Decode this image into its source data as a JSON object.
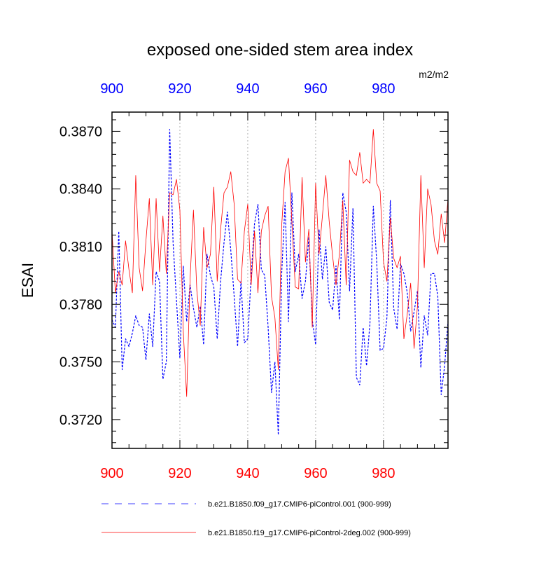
{
  "chart_data": {
    "type": "line",
    "title": "exposed one-sided stem area index",
    "units": "m2/m2",
    "ylabel": "ESAI",
    "xlabel": "",
    "xlim": [
      900,
      999
    ],
    "ylim": [
      0.3705,
      0.388
    ],
    "xticks_bottom": [
      900,
      920,
      940,
      960,
      980
    ],
    "xticks_top": [
      900,
      920,
      940,
      960,
      980
    ],
    "yticks": [
      0.372,
      0.375,
      0.378,
      0.381,
      0.384,
      0.387
    ],
    "ytick_labels": [
      "0.3720",
      "0.3750",
      "0.3780",
      "0.3810",
      "0.3840",
      "0.3870"
    ],
    "grid": "vertical dotted at major x ticks",
    "colors": {
      "top_axis_labels": "#0000ff",
      "bottom_axis_labels": "#ff0000"
    },
    "series": [
      {
        "name": "b.e21.B1850.f09_g17.CMIP6-piControl.001 (900-999)",
        "color": "#0000ff",
        "dash": "dashed",
        "x_start": 900,
        "values": [
          0.3772,
          0.3768,
          0.3818,
          0.3746,
          0.3762,
          0.3758,
          0.3765,
          0.3774,
          0.3769,
          0.3768,
          0.3751,
          0.3775,
          0.3758,
          0.3797,
          0.3792,
          0.3741,
          0.375,
          0.3871,
          0.3812,
          0.3782,
          0.3752,
          0.38,
          0.3771,
          0.379,
          0.3778,
          0.3768,
          0.3779,
          0.3759,
          0.3806,
          0.3795,
          0.3789,
          0.3762,
          0.3792,
          0.3812,
          0.3828,
          0.3808,
          0.3784,
          0.3758,
          0.3792,
          0.376,
          0.3762,
          0.3795,
          0.3822,
          0.3832,
          0.3798,
          0.3795,
          0.3768,
          0.3734,
          0.375,
          0.3712,
          0.3796,
          0.3833,
          0.3771,
          0.3838,
          0.3797,
          0.3806,
          0.3783,
          0.3792,
          0.3815,
          0.3772,
          0.3759,
          0.3819,
          0.3793,
          0.381,
          0.3781,
          0.3777,
          0.38,
          0.3772,
          0.3838,
          0.3828,
          0.3787,
          0.383,
          0.3742,
          0.3738,
          0.3768,
          0.3748,
          0.377,
          0.3831,
          0.3802,
          0.3756,
          0.3757,
          0.3773,
          0.3834,
          0.3778,
          0.3767,
          0.3801,
          0.3796,
          0.3786,
          0.3766,
          0.3776,
          0.3787,
          0.3747,
          0.3774,
          0.3764,
          0.3796,
          0.3796,
          0.3784,
          0.3733,
          0.3748,
          0.3771
        ]
      },
      {
        "name": "b.e21.B1850.f19_g17.CMIP6-piControl-2deg.002 (900-999)",
        "color": "#ff0000",
        "dash": "solid",
        "x_start": 900,
        "values": [
          0.3818,
          0.3786,
          0.3797,
          0.379,
          0.3813,
          0.3798,
          0.3786,
          0.3847,
          0.3799,
          0.3787,
          0.3813,
          0.3835,
          0.379,
          0.3835,
          0.3797,
          0.3826,
          0.3796,
          0.3838,
          0.3837,
          0.3845,
          0.3829,
          0.3766,
          0.3732,
          0.3793,
          0.3829,
          0.3787,
          0.3769,
          0.382,
          0.3799,
          0.3806,
          0.3841,
          0.3792,
          0.3819,
          0.3838,
          0.3841,
          0.3849,
          0.3832,
          0.3793,
          0.3791,
          0.3818,
          0.3832,
          0.379,
          0.3818,
          0.3786,
          0.3818,
          0.3826,
          0.3831,
          0.3784,
          0.3773,
          0.3746,
          0.3821,
          0.3849,
          0.3856,
          0.3823,
          0.3789,
          0.3788,
          0.3846,
          0.3802,
          0.3819,
          0.3768,
          0.3843,
          0.3806,
          0.3826,
          0.3847,
          0.3823,
          0.3805,
          0.379,
          0.3806,
          0.3834,
          0.379,
          0.3855,
          0.3849,
          0.3847,
          0.3859,
          0.3843,
          0.3845,
          0.3843,
          0.3871,
          0.3843,
          0.3839,
          0.3802,
          0.3792,
          0.3825,
          0.3804,
          0.3799,
          0.3805,
          0.3762,
          0.3775,
          0.3791,
          0.3757,
          0.3779,
          0.3847,
          0.3799,
          0.384,
          0.3832,
          0.3813,
          0.3806,
          0.3827,
          0.3812,
          0.3835
        ]
      }
    ]
  }
}
